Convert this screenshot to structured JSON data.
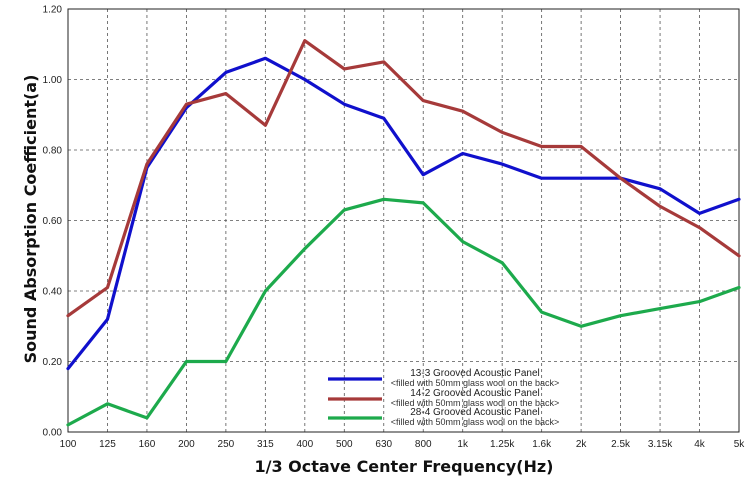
{
  "chart_data": {
    "type": "line",
    "xlabel": "1/3 Octave Center Frequency(Hz)",
    "ylabel": "Sound Absorption Coefficient(a)",
    "ylim": [
      0,
      1.2
    ],
    "y_ticks": [
      "0.00",
      "0.20",
      "0.40",
      "0.60",
      "0.80",
      "1.00",
      "1.20"
    ],
    "categories": [
      "100",
      "125",
      "160",
      "200",
      "250",
      "315",
      "400",
      "500",
      "630",
      "800",
      "1k",
      "1.25k",
      "1.6k",
      "2k",
      "2.5k",
      "3.15k",
      "4k",
      "5k"
    ],
    "grid": "dashed vertical and horizontal",
    "legend_position": "bottom-center",
    "series": [
      {
        "name": "13-3 Grooved Acoustic Panel",
        "note": "<filled with 50mm glass wool on the back>",
        "color": "#1010cc",
        "values": [
          0.18,
          0.32,
          0.75,
          0.92,
          1.02,
          1.06,
          1.0,
          0.93,
          0.89,
          0.73,
          0.79,
          0.76,
          0.72,
          0.72,
          0.72,
          0.69,
          0.62,
          0.66
        ]
      },
      {
        "name": "14-2 Grooved Acoustic Panel",
        "note": "<filled with 50mm glass wool on the back>",
        "color": "#a63a3a",
        "values": [
          0.33,
          0.41,
          0.76,
          0.93,
          0.96,
          0.87,
          1.11,
          1.03,
          1.05,
          0.94,
          0.91,
          0.85,
          0.81,
          0.81,
          0.72,
          0.64,
          0.58,
          0.5
        ]
      },
      {
        "name": "28-4 Grooved Acoustic Panel",
        "note": "<filled with 50mm glass wool on the back>",
        "color": "#1daa4c",
        "values": [
          0.02,
          0.08,
          0.04,
          0.2,
          0.2,
          0.4,
          0.52,
          0.63,
          0.66,
          0.65,
          0.54,
          0.48,
          0.34,
          0.3,
          0.33,
          0.35,
          0.37,
          0.41
        ]
      }
    ]
  }
}
